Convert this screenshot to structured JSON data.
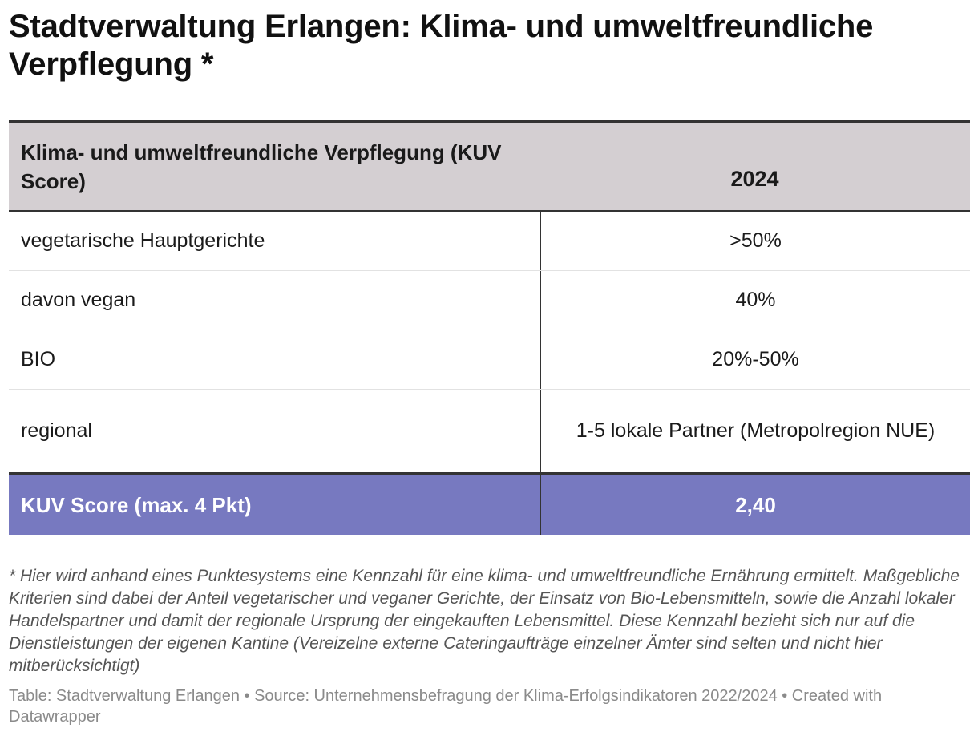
{
  "chart_data": {
    "type": "table",
    "title": "Stadtverwaltung Erlangen: Klima- und umweltfreundliche Verpflegung *",
    "columns": [
      "Klima- und umweltfreundliche Verpflegung (KUV Score)",
      "2024"
    ],
    "rows": [
      {
        "label": "vegetarische Hauptgerichte",
        "value": ">50%"
      },
      {
        "label": "davon vegan",
        "value": "40%"
      },
      {
        "label": "BIO",
        "value": "20%-50%"
      },
      {
        "label": "regional",
        "value": "1-5 lokale Partner (Metropolregion NUE)"
      }
    ],
    "total": {
      "label": "KUV Score (max. 4 Pkt)",
      "value": "2,40"
    },
    "note": "* Hier wird anhand eines Punktesystems eine Kennzahl für eine klima- und umweltfreundliche Ernährung ermittelt. Maßgebliche Kriterien sind dabei der Anteil vegetarischer und veganer Gerichte, der Einsatz von Bio-Lebensmitteln, sowie die Anzahl lokaler Handelspartner und damit der regionale Ursprung der eingekauften Lebensmittel. Diese Kennzahl bezieht sich nur auf die Dienstleistungen der eigenen Kantine (Vereizelne externe Cateringaufträge einzelner Ämter sind selten und nicht hier mitberücksichtigt)",
    "source": "Table: Stadtverwaltung Erlangen • Source: Unternehmensbefragung der Klima-Erfolgsindikatoren 2022/2024 • Created with Datawrapper"
  },
  "colors": {
    "header_bg": "#d4cfd2",
    "total_bg": "#7779c0",
    "rule": "#333333"
  }
}
